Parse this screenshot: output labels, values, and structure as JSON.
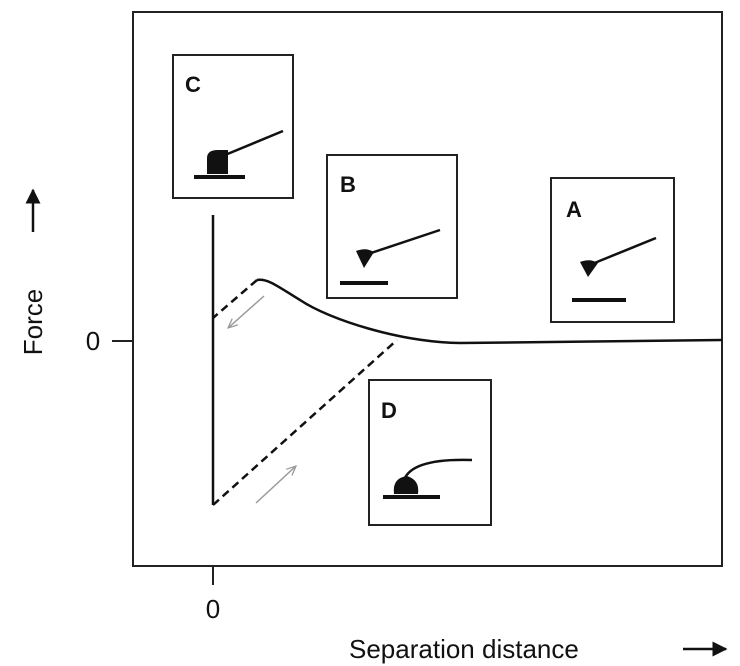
{
  "axes": {
    "y_label": "Force",
    "y_zero": "0",
    "x_zero": "0",
    "x_label": "Separation distance"
  },
  "panels": [
    {
      "label": "C"
    },
    {
      "label": "B"
    },
    {
      "label": "A"
    },
    {
      "label": "D"
    }
  ]
}
